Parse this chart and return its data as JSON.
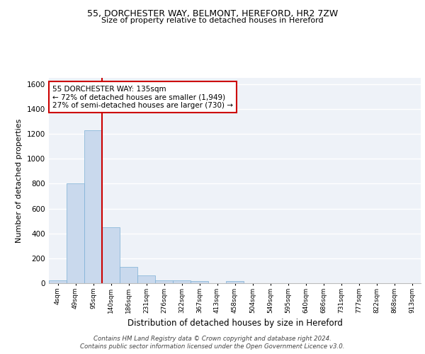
{
  "title1": "55, DORCHESTER WAY, BELMONT, HEREFORD, HR2 7ZW",
  "title2": "Size of property relative to detached houses in Hereford",
  "xlabel": "Distribution of detached houses by size in Hereford",
  "ylabel": "Number of detached properties",
  "bin_labels": [
    "4sqm",
    "49sqm",
    "95sqm",
    "140sqm",
    "186sqm",
    "231sqm",
    "276sqm",
    "322sqm",
    "367sqm",
    "413sqm",
    "458sqm",
    "504sqm",
    "549sqm",
    "595sqm",
    "640sqm",
    "686sqm",
    "731sqm",
    "777sqm",
    "822sqm",
    "868sqm",
    "913sqm"
  ],
  "bar_heights": [
    25,
    800,
    1230,
    450,
    130,
    60,
    25,
    20,
    15,
    0,
    15,
    0,
    0,
    0,
    0,
    0,
    0,
    0,
    0,
    0,
    0
  ],
  "bar_color": "#c9d9ed",
  "bar_edge_color": "#7bafd4",
  "background_color": "#eef2f8",
  "grid_color": "#ffffff",
  "red_line_x": 2.5,
  "annotation_text": "55 DORCHESTER WAY: 135sqm\n← 72% of detached houses are smaller (1,949)\n27% of semi-detached houses are larger (730) →",
  "annotation_box_color": "#ffffff",
  "annotation_box_edge": "#cc0000",
  "red_line_color": "#cc0000",
  "footer_text": "Contains HM Land Registry data © Crown copyright and database right 2024.\nContains public sector information licensed under the Open Government Licence v3.0.",
  "ylim": [
    0,
    1650
  ],
  "yticks": [
    0,
    200,
    400,
    600,
    800,
    1000,
    1200,
    1400,
    1600
  ]
}
